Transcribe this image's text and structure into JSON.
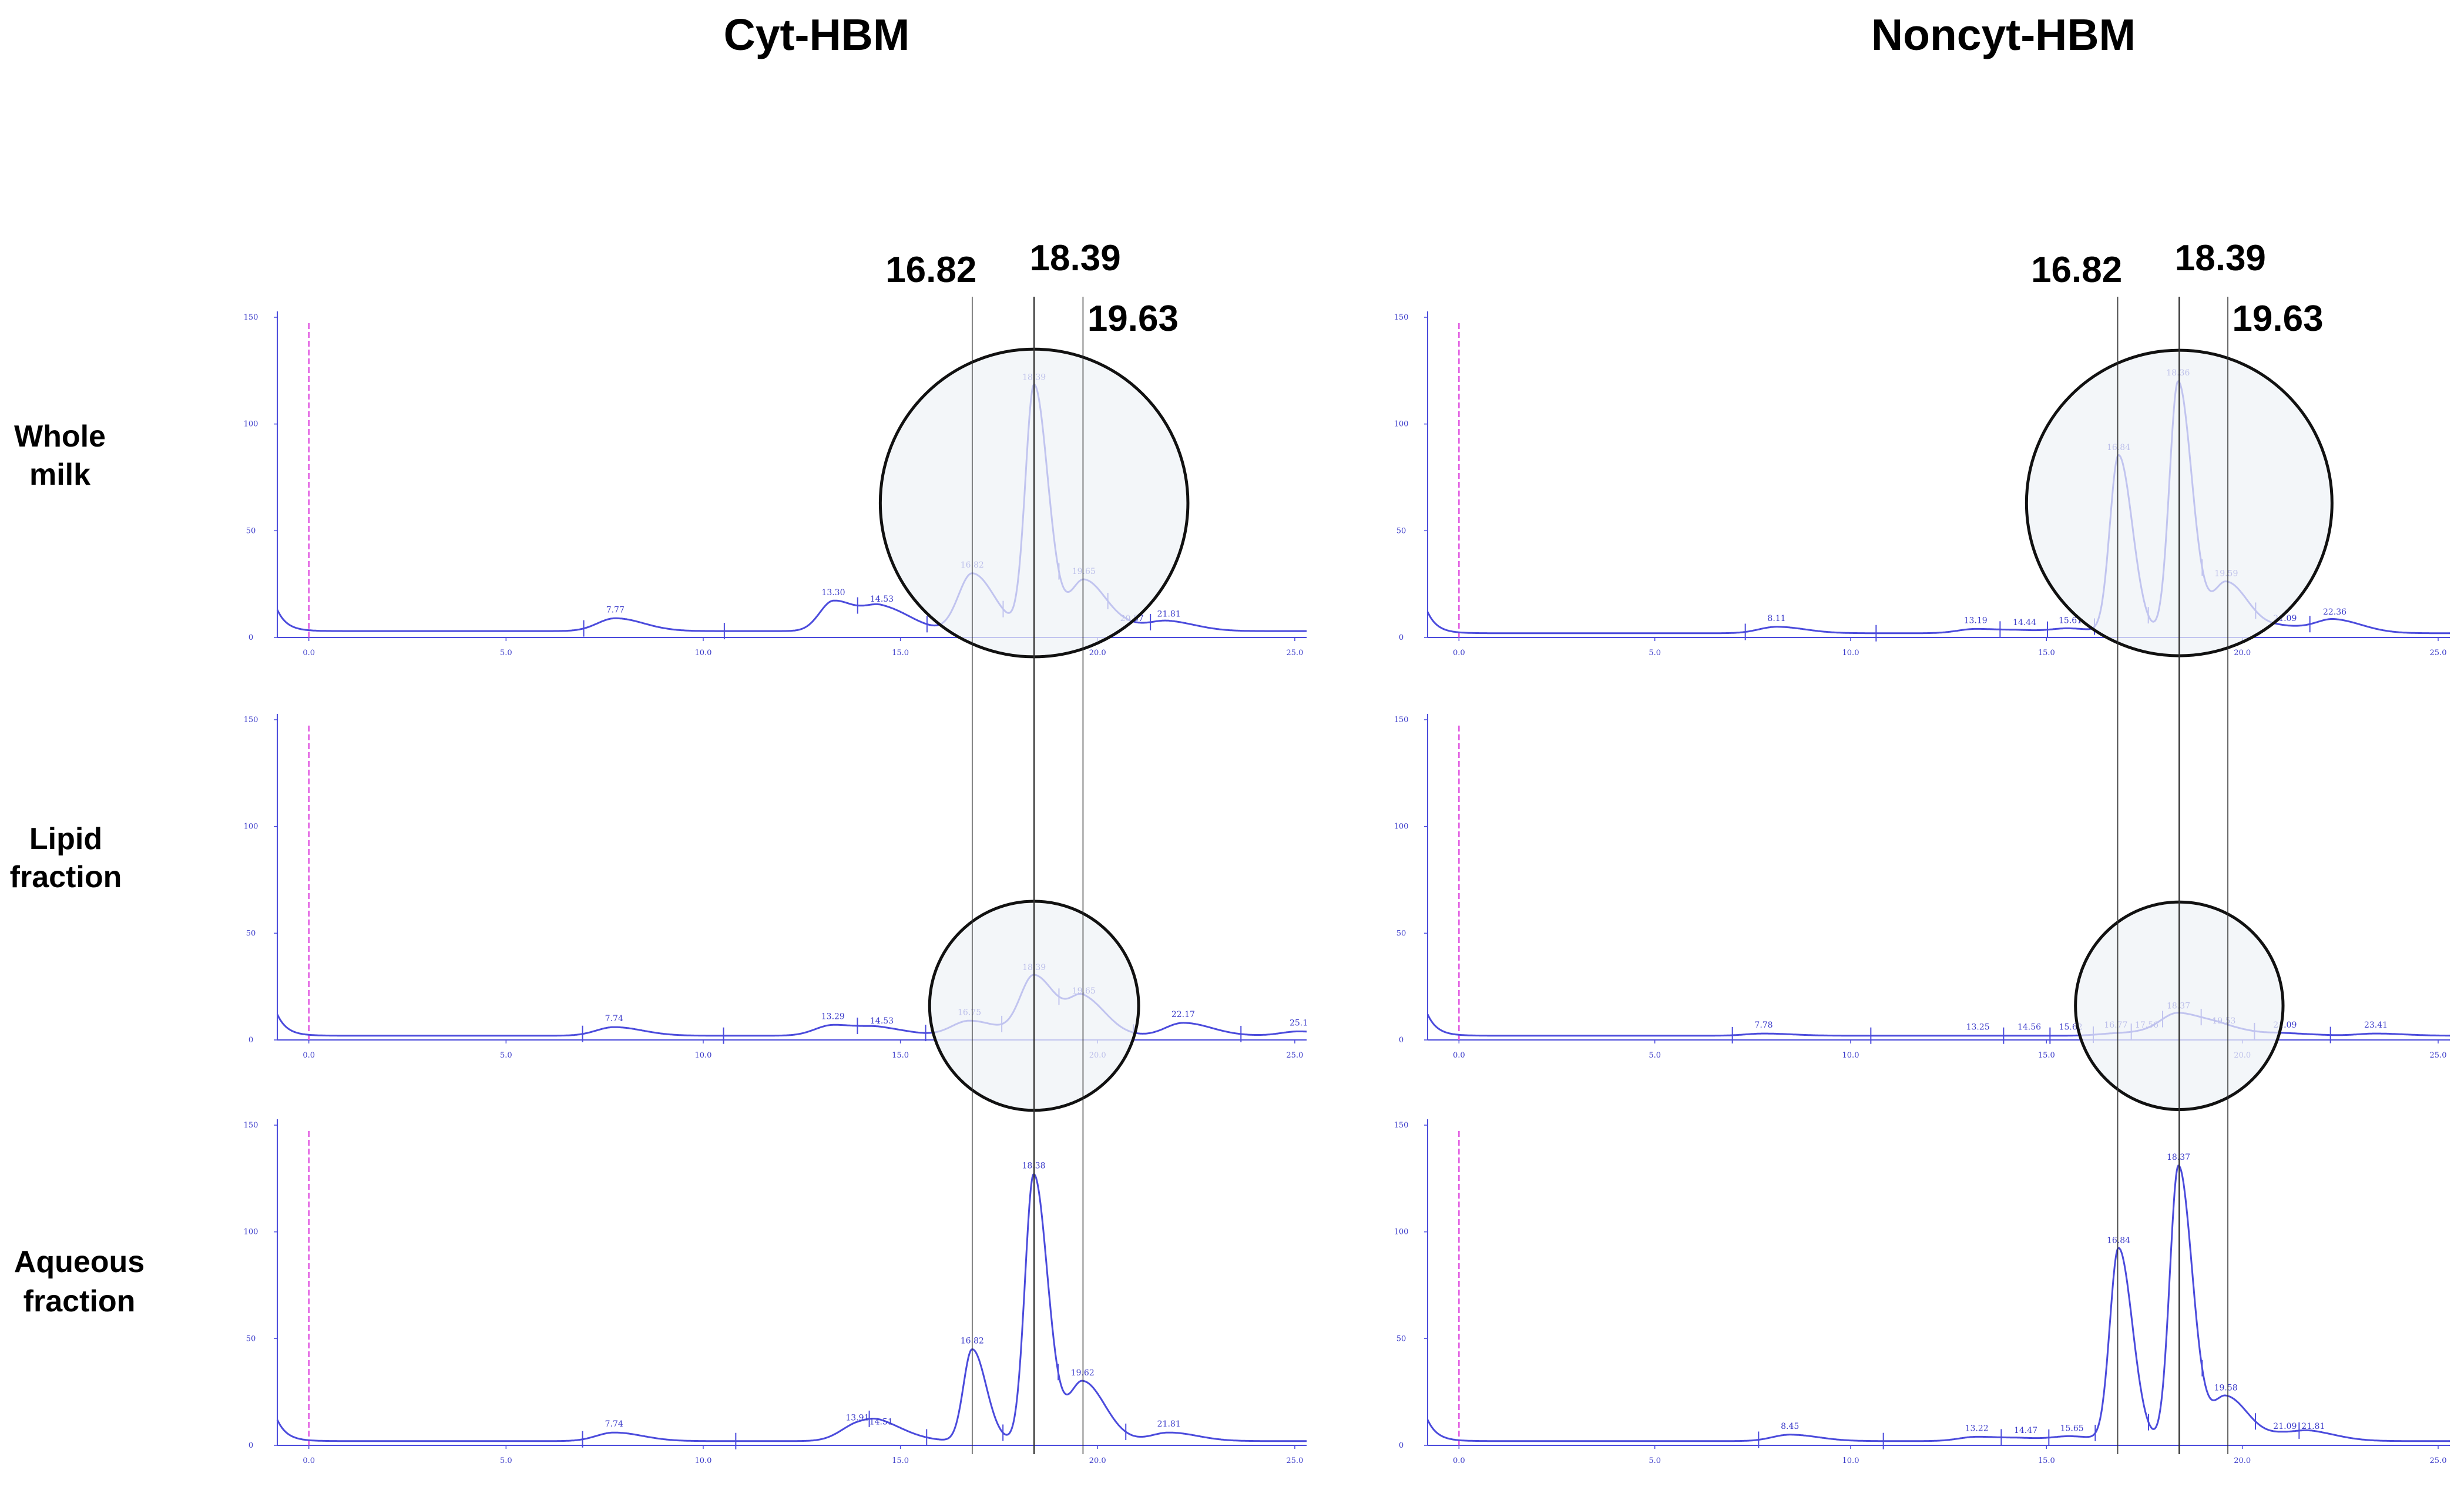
{
  "chart_data": {
    "type": "line",
    "columns": [
      "Cyt-HBM",
      "Noncyt-HBM"
    ],
    "rows": [
      {
        "label": [
          "Whole",
          "milk"
        ]
      },
      {
        "label": [
          "Lipid",
          "fraction"
        ]
      },
      {
        "label": [
          "Aqueous",
          "fraction"
        ]
      }
    ],
    "reference_lines": [
      "16.82",
      "18.39",
      "19.63"
    ],
    "x_ticks": [
      "0.0",
      "5.0",
      "10.0",
      "15.0",
      "20.0",
      "25.0"
    ],
    "x_tick_values": [
      0,
      5,
      10,
      15,
      20,
      25
    ],
    "y_ticks": [
      "0",
      "50",
      "100",
      "150"
    ],
    "y_tick_values": [
      0,
      50,
      100,
      150
    ],
    "xlim": [
      -0.8,
      25.3
    ],
    "ylim": [
      0,
      150
    ],
    "injection_marker_x": 0,
    "colors": {
      "trace": "#4b4bdc",
      "tick": "#3b3bc9",
      "injection": "#e052e0",
      "highlight_fill": "#eef3f6",
      "highlight_stroke": "#111111",
      "ref_line": "#333333"
    },
    "panels": [
      {
        "column": 0,
        "row": 0,
        "baseline": 3,
        "peaks": [
          {
            "rt": 7.77,
            "label": "7.77",
            "height": 9
          },
          {
            "rt": 13.3,
            "label": "13.30",
            "height": 17
          },
          {
            "rt": 14.53,
            "label": "14.53",
            "height": 14
          },
          {
            "rt": 16.82,
            "label": "16.82",
            "height": 30
          },
          {
            "rt": 18.39,
            "label": "18.39",
            "height": 118
          },
          {
            "rt": 19.65,
            "label": "19.65",
            "height": 27
          },
          {
            "rt": 20.87,
            "label": "20.87",
            "height": 5
          },
          {
            "rt": 21.81,
            "label": "21.81",
            "height": 7
          }
        ],
        "circle": {
          "center_rt": 18.39,
          "center_y": 63,
          "radius_rt": 3.9
        }
      },
      {
        "column": 0,
        "row": 1,
        "baseline": 2,
        "peaks": [
          {
            "rt": 7.74,
            "label": "7.74",
            "height": 6
          },
          {
            "rt": 13.29,
            "label": "13.29",
            "height": 7
          },
          {
            "rt": 14.53,
            "label": "14.53",
            "height": 5
          },
          {
            "rt": 16.75,
            "label": "16.75",
            "height": 9
          },
          {
            "rt": 18.39,
            "label": "18.39",
            "height": 30
          },
          {
            "rt": 19.65,
            "label": "19.65",
            "height": 19
          },
          {
            "rt": 22.17,
            "label": "22.17",
            "height": 8
          },
          {
            "rt": 25.1,
            "label": "25.1",
            "height": 4
          }
        ],
        "circle": {
          "center_rt": 18.39,
          "center_y": 16,
          "radius_rt": 2.65
        }
      },
      {
        "column": 0,
        "row": 2,
        "baseline": 2,
        "peaks": [
          {
            "rt": 7.74,
            "label": "7.74",
            "height": 6
          },
          {
            "rt": 13.91,
            "label": "13.91",
            "height": 9
          },
          {
            "rt": 14.51,
            "label": "14.51",
            "height": 7
          },
          {
            "rt": 16.82,
            "label": "16.82",
            "height": 45
          },
          {
            "rt": 18.38,
            "label": "18.38",
            "height": 127
          },
          {
            "rt": 19.62,
            "label": "19.62",
            "height": 30
          },
          {
            "rt": 21.81,
            "label": "21.81",
            "height": 6
          }
        ],
        "circle": null
      },
      {
        "column": 1,
        "row": 0,
        "baseline": 2,
        "peaks": [
          {
            "rt": 8.11,
            "label": "8.11",
            "height": 5
          },
          {
            "rt": 13.19,
            "label": "13.19",
            "height": 4
          },
          {
            "rt": 14.44,
            "label": "14.44",
            "height": 3
          },
          {
            "rt": 15.61,
            "label": "15.61",
            "height": 4
          },
          {
            "rt": 16.84,
            "label": "16.84",
            "height": 85
          },
          {
            "rt": 18.36,
            "label": "18.36",
            "height": 120
          },
          {
            "rt": 19.59,
            "label": "19.59",
            "height": 26
          },
          {
            "rt": 21.09,
            "label": "21.09",
            "height": 5
          },
          {
            "rt": 22.36,
            "label": "22.36",
            "height": 8
          }
        ],
        "circle": {
          "center_rt": 18.39,
          "center_y": 63,
          "radius_rt": 3.9
        }
      },
      {
        "column": 1,
        "row": 1,
        "baseline": 2,
        "peaks": [
          {
            "rt": 7.78,
            "label": "7.78",
            "height": 3
          },
          {
            "rt": 13.25,
            "label": "13.25",
            "height": 2
          },
          {
            "rt": 14.56,
            "label": "14.56",
            "height": 2
          },
          {
            "rt": 15.62,
            "label": "15.62",
            "height": 2
          },
          {
            "rt": 16.77,
            "label": "16.77",
            "height": 3
          },
          {
            "rt": 17.56,
            "label": "17.56",
            "height": 3
          },
          {
            "rt": 18.37,
            "label": "18.37",
            "height": 12
          },
          {
            "rt": 19.53,
            "label": "19.53",
            "height": 5
          },
          {
            "rt": 21.09,
            "label": "21.09",
            "height": 3
          },
          {
            "rt": 23.41,
            "label": "23.41",
            "height": 3
          }
        ],
        "circle": {
          "center_rt": 18.39,
          "center_y": 16,
          "radius_rt": 2.65
        }
      },
      {
        "column": 1,
        "row": 2,
        "baseline": 2,
        "peaks": [
          {
            "rt": 8.45,
            "label": "8.45",
            "height": 5
          },
          {
            "rt": 13.22,
            "label": "13.22",
            "height": 4
          },
          {
            "rt": 14.47,
            "label": "14.47",
            "height": 3
          },
          {
            "rt": 15.65,
            "label": "15.65",
            "height": 4
          },
          {
            "rt": 16.84,
            "label": "16.84",
            "height": 92
          },
          {
            "rt": 18.37,
            "label": "18.37",
            "height": 131
          },
          {
            "rt": 19.58,
            "label": "19.58",
            "height": 23
          },
          {
            "rt": 21.09,
            "label": "21.09",
            "height": 5
          },
          {
            "rt": 21.81,
            "label": "21.81",
            "height": 5
          }
        ],
        "circle": null
      }
    ]
  }
}
